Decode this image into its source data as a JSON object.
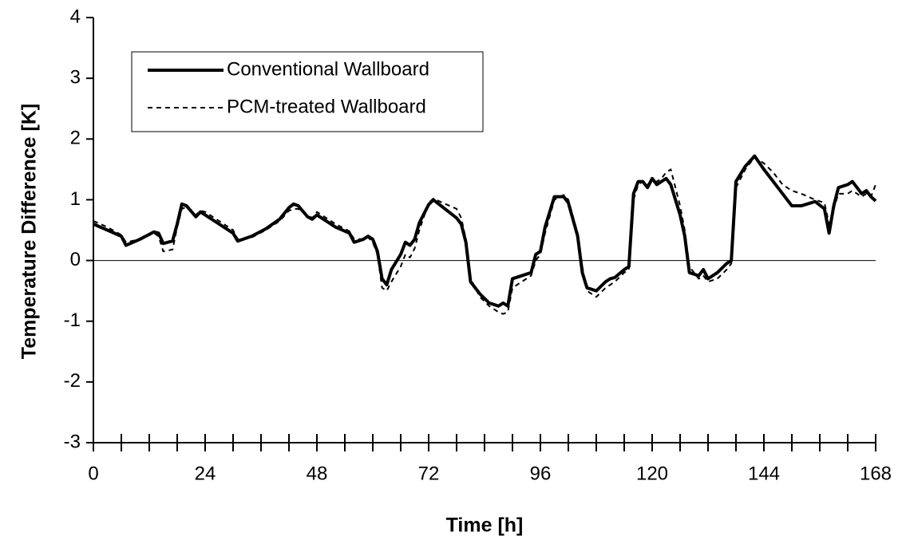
{
  "chart_data": {
    "type": "line",
    "x_label": "Time [h]",
    "y_label": "Temperature Difference [K]",
    "xlim": [
      0,
      168
    ],
    "xticks": [
      0,
      24,
      48,
      72,
      96,
      120,
      144,
      168
    ],
    "x_minor_ticks": [
      6,
      12,
      18,
      30,
      36,
      42,
      54,
      60,
      66,
      78,
      84,
      90,
      102,
      108,
      114,
      126,
      132,
      138,
      150,
      156,
      162
    ],
    "ylim": [
      -3,
      4
    ],
    "yticks": [
      -3,
      -2,
      -1,
      0,
      1,
      2,
      3,
      4
    ],
    "zero_line": true,
    "legend": "upper left",
    "x": [
      0,
      3,
      6,
      7,
      10,
      13,
      14,
      15,
      17,
      18,
      19,
      20,
      22,
      23,
      24,
      27,
      30,
      31,
      34,
      37,
      40,
      42,
      43,
      44,
      46,
      47,
      48,
      50,
      52,
      55,
      56,
      58,
      59,
      60,
      61,
      62,
      63,
      64,
      66,
      67,
      68,
      69,
      70,
      72,
      73,
      75,
      78,
      79,
      80,
      81,
      83,
      85,
      87,
      88,
      89,
      90,
      94,
      95,
      96,
      97,
      99,
      101,
      102,
      104,
      105,
      106,
      108,
      110,
      111,
      112,
      114,
      115,
      116,
      117,
      118,
      119,
      120,
      121,
      122,
      123,
      124,
      126,
      127,
      128,
      130,
      131,
      132,
      134,
      136,
      137,
      138,
      140,
      142,
      144,
      146,
      148,
      150,
      152,
      155,
      157,
      158,
      159,
      160,
      162,
      163,
      164,
      165,
      166,
      167,
      168
    ],
    "series": [
      {
        "name": "Conventional Wallboard",
        "color": "#000000",
        "style": "solid",
        "values": [
          0.6,
          0.5,
          0.4,
          0.25,
          0.35,
          0.47,
          0.45,
          0.28,
          0.32,
          0.6,
          0.93,
          0.9,
          0.72,
          0.8,
          0.75,
          0.6,
          0.45,
          0.32,
          0.4,
          0.52,
          0.68,
          0.87,
          0.93,
          0.9,
          0.72,
          0.68,
          0.75,
          0.65,
          0.55,
          0.45,
          0.3,
          0.35,
          0.4,
          0.35,
          0.15,
          -0.3,
          -0.4,
          -0.15,
          0.1,
          0.3,
          0.25,
          0.35,
          0.62,
          0.92,
          1.0,
          0.88,
          0.7,
          0.6,
          0.3,
          -0.35,
          -0.55,
          -0.7,
          -0.75,
          -0.7,
          -0.75,
          -0.3,
          -0.2,
          0.1,
          0.15,
          0.55,
          1.05,
          1.05,
          0.95,
          0.4,
          -0.2,
          -0.45,
          -0.5,
          -0.35,
          -0.3,
          -0.28,
          -0.15,
          -0.1,
          1.1,
          1.3,
          1.3,
          1.2,
          1.35,
          1.25,
          1.3,
          1.35,
          1.25,
          0.75,
          0.4,
          -0.2,
          -0.25,
          -0.15,
          -0.3,
          -0.2,
          -0.05,
          0.0,
          1.3,
          1.55,
          1.72,
          1.5,
          1.3,
          1.1,
          0.9,
          0.9,
          0.97,
          0.85,
          0.45,
          0.9,
          1.2,
          1.25,
          1.3,
          1.2,
          1.1,
          1.15,
          1.05,
          0.98
        ]
      },
      {
        "name": "PCM-treated Wallboard",
        "color": "#000000",
        "style": "dashed",
        "values": [
          0.65,
          0.55,
          0.42,
          0.3,
          0.35,
          0.45,
          0.4,
          0.15,
          0.18,
          0.55,
          0.85,
          0.88,
          0.75,
          0.82,
          0.8,
          0.65,
          0.5,
          0.35,
          0.38,
          0.5,
          0.65,
          0.82,
          0.85,
          0.85,
          0.75,
          0.7,
          0.8,
          0.7,
          0.6,
          0.48,
          0.35,
          0.35,
          0.38,
          0.3,
          0.1,
          -0.45,
          -0.5,
          -0.35,
          -0.1,
          0.1,
          0.05,
          0.2,
          0.5,
          0.95,
          1.02,
          0.95,
          0.85,
          0.7,
          0.35,
          -0.3,
          -0.6,
          -0.75,
          -0.85,
          -0.88,
          -0.85,
          -0.45,
          -0.25,
          0.0,
          0.1,
          0.45,
          1.0,
          1.08,
          1.0,
          0.45,
          -0.1,
          -0.5,
          -0.6,
          -0.45,
          -0.4,
          -0.35,
          -0.2,
          -0.15,
          1.0,
          1.25,
          1.3,
          1.25,
          1.3,
          1.3,
          1.35,
          1.45,
          1.5,
          0.9,
          0.5,
          -0.1,
          -0.3,
          -0.25,
          -0.35,
          -0.3,
          -0.15,
          -0.05,
          1.2,
          1.5,
          1.7,
          1.6,
          1.45,
          1.25,
          1.15,
          1.1,
          1.0,
          0.95,
          0.6,
          0.85,
          1.1,
          1.1,
          1.15,
          1.1,
          1.05,
          1.1,
          1.05,
          1.25
        ]
      }
    ]
  }
}
